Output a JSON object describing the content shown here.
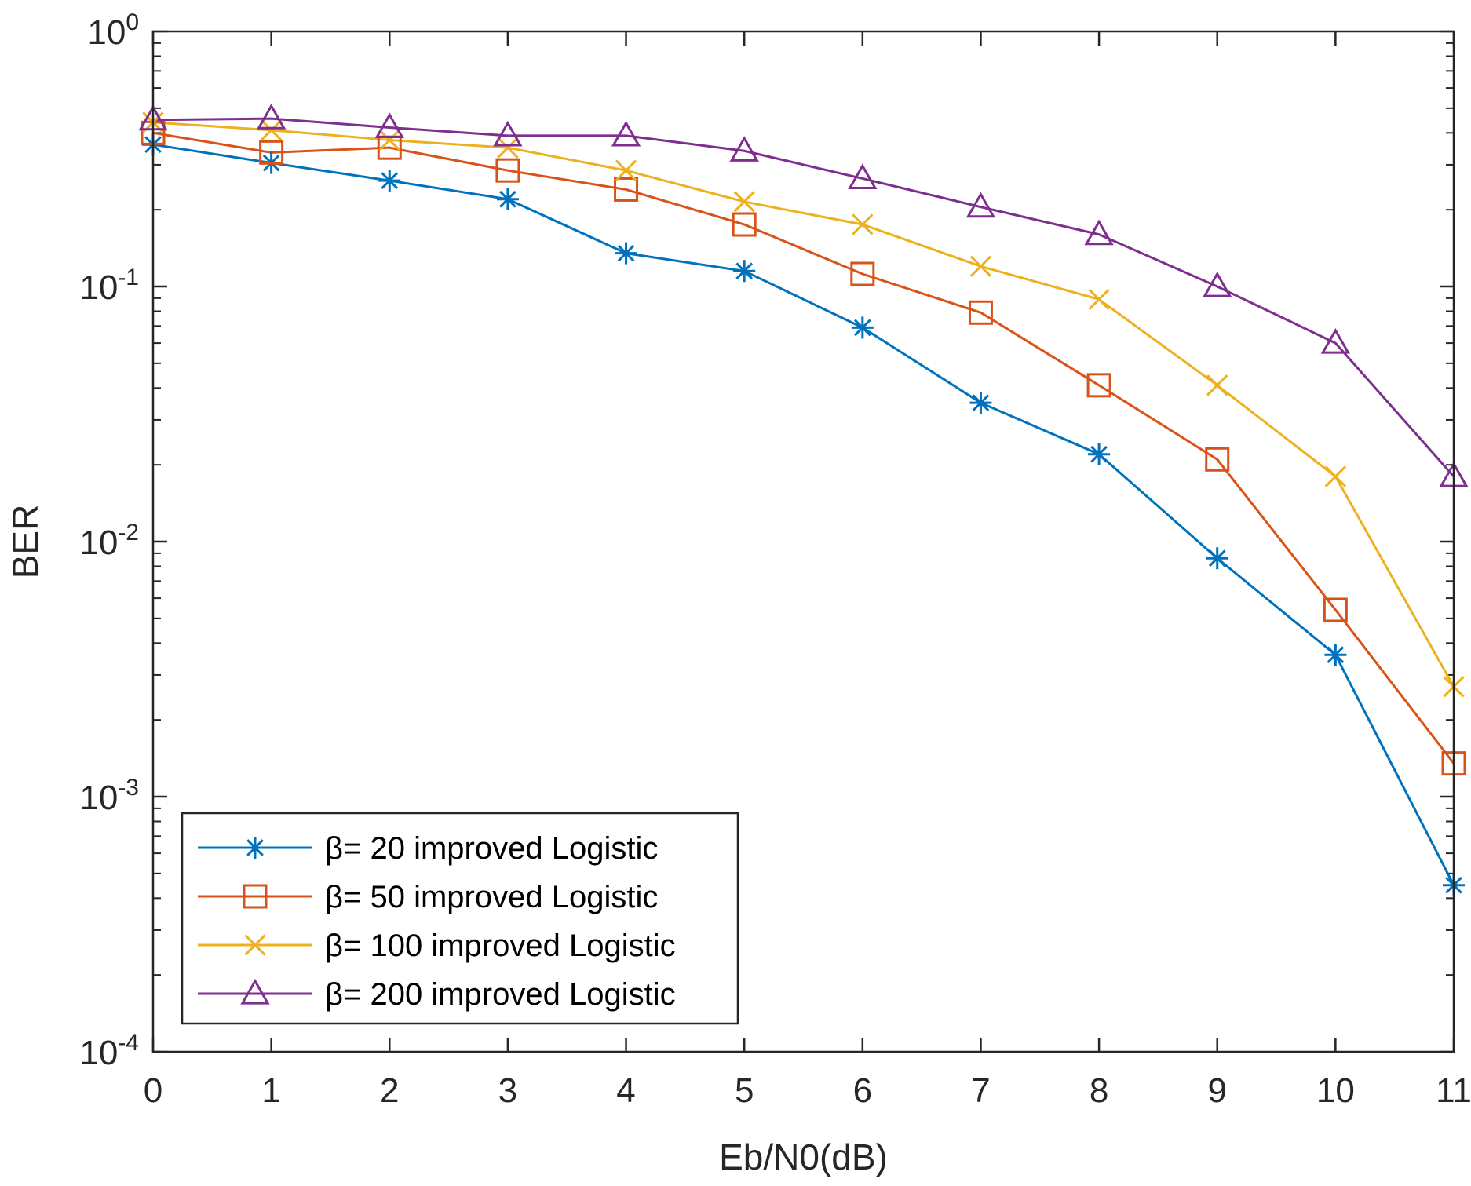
{
  "chart_data": {
    "type": "line",
    "title": "",
    "xlabel": "Eb/N0(dB)",
    "ylabel": "BER",
    "yscale": "log",
    "xlim": [
      0,
      11
    ],
    "ylim": [
      0.0001,
      1
    ],
    "grid": false,
    "legend_position": "bottom-left",
    "x": [
      0,
      1,
      2,
      3,
      4,
      5,
      6,
      7,
      8,
      9,
      10,
      11
    ],
    "x_tick_labels": [
      "0",
      "1",
      "2",
      "3",
      "4",
      "5",
      "6",
      "7",
      "8",
      "9",
      "10",
      "11"
    ],
    "y_ticks": [
      {
        "value": 1,
        "base": "10",
        "exp": "0"
      },
      {
        "value": 0.1,
        "base": "10",
        "exp": "-1"
      },
      {
        "value": 0.01,
        "base": "10",
        "exp": "-2"
      },
      {
        "value": 0.001,
        "base": "10",
        "exp": "-3"
      },
      {
        "value": 0.0001,
        "base": "10",
        "exp": "-4"
      }
    ],
    "series": [
      {
        "name": "β= 20 improved Logistic",
        "color": "#0072BD",
        "marker": "asterisk",
        "values": [
          0.36,
          0.305,
          0.26,
          0.22,
          0.135,
          0.115,
          0.069,
          0.035,
          0.022,
          0.0086,
          0.0036,
          0.00045
        ]
      },
      {
        "name": "β= 50 improved Logistic",
        "color": "#D95319",
        "marker": "square",
        "values": [
          0.4,
          0.335,
          0.35,
          0.285,
          0.24,
          0.175,
          0.112,
          0.079,
          0.041,
          0.021,
          0.0054,
          0.00135
        ]
      },
      {
        "name": "β= 100 improved Logistic",
        "color": "#EDB120",
        "marker": "x",
        "values": [
          0.44,
          0.41,
          0.375,
          0.35,
          0.285,
          0.215,
          0.175,
          0.12,
          0.089,
          0.041,
          0.018,
          0.0027
        ]
      },
      {
        "name": "β= 200 improved Logistic",
        "color": "#7E2F8E",
        "marker": "triangle",
        "values": [
          0.45,
          0.455,
          0.42,
          0.39,
          0.39,
          0.34,
          0.265,
          0.205,
          0.16,
          0.1,
          0.06,
          0.018
        ]
      }
    ]
  }
}
